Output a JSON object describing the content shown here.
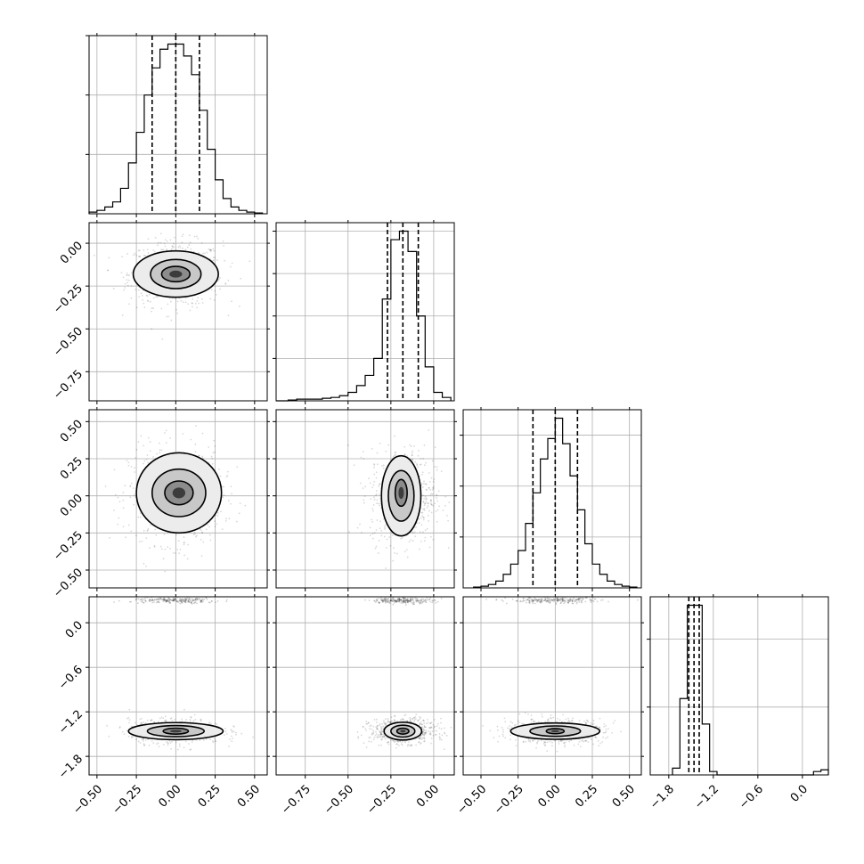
{
  "chart_data": {
    "type": "corner",
    "grid": true,
    "n_params": 4,
    "params": [
      {
        "range": [
          -0.55,
          0.58
        ],
        "ticks": [
          -0.5,
          -0.25,
          0.0,
          0.25,
          0.5
        ],
        "tick_labels": [
          "−0.50",
          "−0.25",
          "0.00",
          "0.25",
          "0.50"
        ],
        "quantiles": [
          -0.15,
          0.0,
          0.15
        ],
        "hist": {
          "edges": [
            -0.55,
            -0.5,
            -0.45,
            -0.4,
            -0.35,
            -0.3,
            -0.25,
            -0.2,
            -0.15,
            -0.1,
            -0.05,
            0.0,
            0.05,
            0.1,
            0.15,
            0.2,
            0.25,
            0.3,
            0.35,
            0.4,
            0.45,
            0.5,
            0.55
          ],
          "counts": [
            0.01,
            0.02,
            0.04,
            0.07,
            0.15,
            0.3,
            0.48,
            0.7,
            0.86,
            0.97,
            1.0,
            1.0,
            0.93,
            0.82,
            0.61,
            0.38,
            0.2,
            0.09,
            0.04,
            0.02,
            0.01,
            0.005
          ],
          "y_ticks": [
            0.35,
            0.7,
            1.05
          ]
        },
        "center": 0.0,
        "sigma": 0.11
      },
      {
        "range": [
          -0.92,
          0.12
        ],
        "ticks": [
          -0.75,
          -0.5,
          -0.25,
          0.0
        ],
        "tick_labels": [
          "−0.75",
          "−0.50",
          "−0.25",
          "0.00"
        ],
        "quantiles": [
          -0.27,
          -0.18,
          -0.09
        ],
        "hist": {
          "edges": [
            -0.95,
            -0.9,
            -0.85,
            -0.8,
            -0.75,
            -0.7,
            -0.65,
            -0.6,
            -0.55,
            -0.5,
            -0.45,
            -0.4,
            -0.35,
            -0.3,
            -0.25,
            -0.2,
            -0.15,
            -0.1,
            -0.05,
            0.0,
            0.05,
            0.1
          ],
          "counts": [
            0.0,
            0.0,
            0.005,
            0.01,
            0.01,
            0.01,
            0.015,
            0.02,
            0.03,
            0.05,
            0.09,
            0.15,
            0.25,
            0.6,
            0.95,
            1.0,
            0.88,
            0.5,
            0.2,
            0.05,
            0.02
          ],
          "y_ticks": [
            0.25,
            0.5,
            0.75,
            1.0
          ]
        },
        "center": -0.18,
        "sigma": 0.07
      },
      {
        "range": [
          -0.62,
          0.58
        ],
        "ticks": [
          -0.5,
          -0.25,
          0.0,
          0.25,
          0.5
        ],
        "tick_labels": [
          "−0.50",
          "−0.25",
          "0.00",
          "0.25",
          "0.50"
        ],
        "quantiles": [
          -0.15,
          0.0,
          0.15
        ],
        "hist": {
          "edges": [
            -0.55,
            -0.5,
            -0.45,
            -0.4,
            -0.35,
            -0.3,
            -0.25,
            -0.2,
            -0.15,
            -0.1,
            -0.05,
            0.0,
            0.05,
            0.1,
            0.15,
            0.2,
            0.25,
            0.3,
            0.35,
            0.4,
            0.45,
            0.5,
            0.55
          ],
          "counts": [
            0.005,
            0.01,
            0.02,
            0.04,
            0.08,
            0.14,
            0.22,
            0.38,
            0.56,
            0.76,
            0.88,
            1.0,
            0.85,
            0.66,
            0.46,
            0.26,
            0.14,
            0.08,
            0.04,
            0.02,
            0.01,
            0.005
          ],
          "y_ticks": [
            0.3,
            0.6,
            0.9
          ]
        },
        "center": 0.0,
        "sigma": 0.12
      },
      {
        "range": [
          -2.05,
          0.35
        ],
        "ticks": [
          -1.8,
          -1.2,
          -0.6,
          0.0
        ],
        "tick_labels": [
          "−1.8",
          "−1.2",
          "−0.6",
          "0.0"
        ],
        "quantiles": [
          -1.53,
          -1.46,
          -1.39
        ],
        "hist": {
          "edges": [
            -1.75,
            -1.65,
            -1.55,
            -1.45,
            -1.35,
            -1.25,
            -1.15,
            -1.05,
            0.15,
            0.25,
            0.35
          ],
          "counts": [
            0.04,
            0.45,
            1.0,
            1.0,
            0.3,
            0.02,
            0.0,
            0.0,
            0.02,
            0.03
          ],
          "y_ticks": [
            0.4,
            0.8
          ]
        },
        "center": -1.46,
        "sigma": 0.06
      }
    ],
    "pairs": [
      {
        "row": 1,
        "col": 0,
        "contours": [
          {
            "level": 1,
            "cx": 0.0,
            "cy": -0.18,
            "rx": 0.09,
            "ry": 0.045
          },
          {
            "level": 2,
            "cx": 0.0,
            "cy": -0.18,
            "rx": 0.16,
            "ry": 0.085
          },
          {
            "level": 3,
            "cx": 0.0,
            "cy": -0.18,
            "rx": 0.27,
            "ry": 0.135
          }
        ],
        "hook": {
          "dx": 0.0,
          "dy": 0.0
        }
      },
      {
        "row": 2,
        "col": 0,
        "contours": [
          {
            "level": 1,
            "cx": 0.02,
            "cy": 0.02,
            "rx": 0.09,
            "ry": 0.08
          },
          {
            "level": 2,
            "cx": 0.02,
            "cy": 0.02,
            "rx": 0.17,
            "ry": 0.16
          },
          {
            "level": 3,
            "cx": 0.02,
            "cy": 0.02,
            "rx": 0.27,
            "ry": 0.27
          }
        ],
        "hook": {
          "dx": 0.0,
          "dy": 0.0
        }
      },
      {
        "row": 2,
        "col": 1,
        "contours": [
          {
            "level": 1,
            "cx": -0.19,
            "cy": 0.02,
            "rx": 0.035,
            "ry": 0.09
          },
          {
            "level": 2,
            "cx": -0.19,
            "cy": 0.0,
            "rx": 0.075,
            "ry": 0.17
          },
          {
            "level": 3,
            "cx": -0.19,
            "cy": 0.0,
            "rx": 0.115,
            "ry": 0.27
          }
        ],
        "hook": {
          "dx": 0.0,
          "dy": 0.0
        }
      },
      {
        "row": 3,
        "col": 0,
        "contours": [
          {
            "level": 1,
            "cx": 0.0,
            "cy": -1.46,
            "rx": 0.08,
            "ry": 0.04
          },
          {
            "level": 2,
            "cx": 0.0,
            "cy": -1.46,
            "rx": 0.18,
            "ry": 0.075
          },
          {
            "level": 3,
            "cx": 0.0,
            "cy": -1.46,
            "rx": 0.3,
            "ry": 0.115
          }
        ],
        "outlier_band": {
          "center": 0.3,
          "spread": 0.04
        }
      },
      {
        "row": 3,
        "col": 1,
        "contours": [
          {
            "level": 1,
            "cx": -0.18,
            "cy": -1.46,
            "rx": 0.035,
            "ry": 0.04
          },
          {
            "level": 2,
            "cx": -0.18,
            "cy": -1.46,
            "rx": 0.07,
            "ry": 0.08
          },
          {
            "level": 3,
            "cx": -0.18,
            "cy": -1.46,
            "rx": 0.11,
            "ry": 0.12
          }
        ],
        "outlier_band": {
          "center": 0.3,
          "spread": 0.04
        }
      },
      {
        "row": 3,
        "col": 2,
        "contours": [
          {
            "level": 1,
            "cx": 0.0,
            "cy": -1.46,
            "rx": 0.06,
            "ry": 0.035
          },
          {
            "level": 2,
            "cx": 0.0,
            "cy": -1.46,
            "rx": 0.17,
            "ry": 0.07
          },
          {
            "level": 3,
            "cx": 0.0,
            "cy": -1.46,
            "rx": 0.3,
            "ry": 0.11
          }
        ],
        "outlier_band": {
          "center": 0.3,
          "spread": 0.04
        }
      }
    ],
    "colors": {
      "line": "#000000",
      "grid": "#b0b0b0",
      "fill_levels": [
        "#ececec",
        "#c8c8c8",
        "#8c8c8c",
        "#3c3c3c"
      ]
    }
  }
}
